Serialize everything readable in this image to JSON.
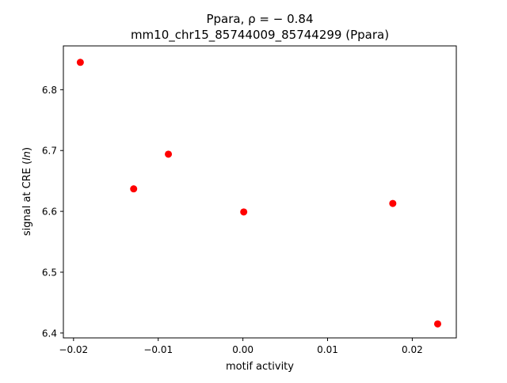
{
  "chart_data": {
    "type": "scatter",
    "title_line1": "Ppara, ρ = − 0.84",
    "title_line2": "mm10_chr15_85744009_85744299 (Ppara)",
    "xlabel": "motif activity",
    "ylabel": "signal at CRE (ln)",
    "xlim": [
      -0.0212,
      0.0252
    ],
    "ylim": [
      6.392,
      6.872
    ],
    "xticks": [
      -0.02,
      -0.01,
      0.0,
      0.01,
      0.02
    ],
    "xtick_labels": [
      "−0.02",
      "−0.01",
      "0.00",
      "0.01",
      "0.02"
    ],
    "yticks": [
      6.4,
      6.5,
      6.6,
      6.7,
      6.8
    ],
    "ytick_labels": [
      "6.4",
      "6.5",
      "6.6",
      "6.7",
      "6.8"
    ],
    "grid": false,
    "marker_color": "#ff0000",
    "points": [
      {
        "x": -0.0192,
        "y": 6.845
      },
      {
        "x": -0.0129,
        "y": 6.637
      },
      {
        "x": -0.0088,
        "y": 6.694
      },
      {
        "x": 0.0001,
        "y": 6.599
      },
      {
        "x": 0.0177,
        "y": 6.613
      },
      {
        "x": 0.023,
        "y": 6.415
      }
    ]
  }
}
